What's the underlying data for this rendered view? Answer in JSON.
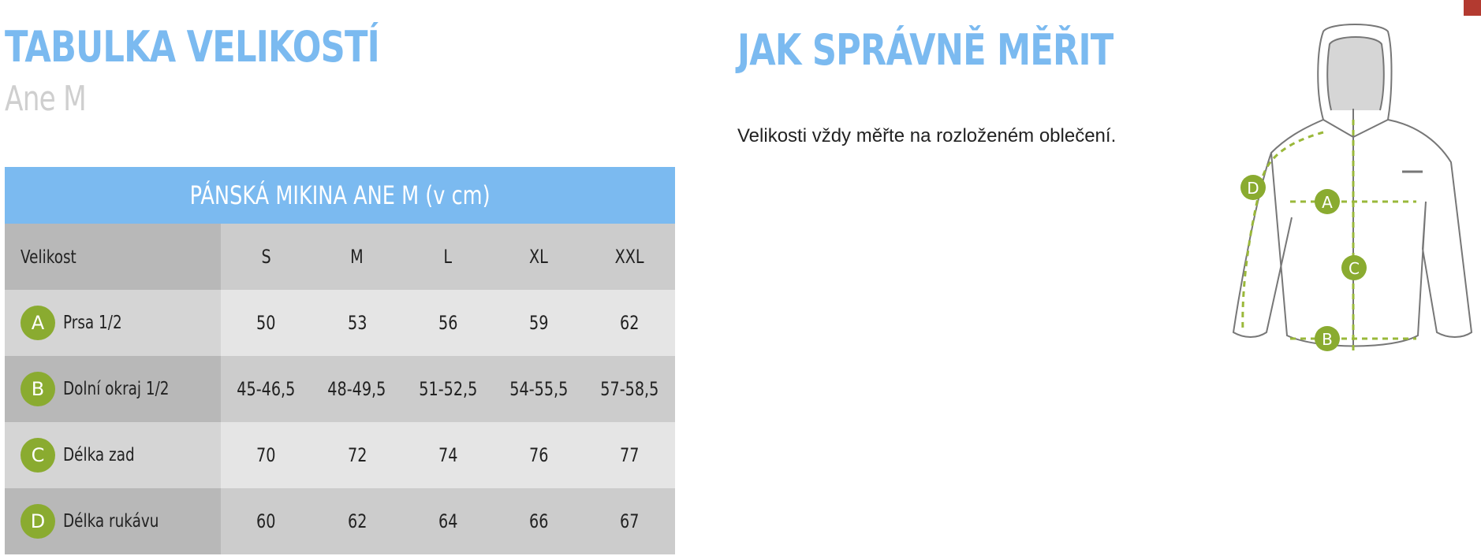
{
  "colors": {
    "accent_blue": "#7bbaf0",
    "badge_green": "#8aab30",
    "header_row_label": "#b8b8b8",
    "header_row": "#cccccc",
    "row_light_label": "#d5d5d5",
    "row_light": "#e5e5e5",
    "row_dark_label": "#b8b8b8",
    "row_dark": "#cccccc",
    "corner_mark": "#b33a30"
  },
  "left": {
    "title": "TABULKA VELIKOSTÍ",
    "product": "Ane M"
  },
  "table": {
    "caption": "PÁNSKÁ MIKINA ANE M (v cm)",
    "header": {
      "label": "Velikost",
      "sizes": [
        "S",
        "M",
        "L",
        "XL",
        "XXL"
      ]
    },
    "rows": [
      {
        "badge": "A",
        "label": "Prsa 1/2",
        "values": [
          "50",
          "53",
          "56",
          "59",
          "62"
        ]
      },
      {
        "badge": "B",
        "label": "Dolní okraj 1/2",
        "values": [
          "45-46,5",
          "48-49,5",
          "51-52,5",
          "54-55,5",
          "57-58,5"
        ]
      },
      {
        "badge": "C",
        "label": "Délka zad",
        "values": [
          "70",
          "72",
          "74",
          "76",
          "77"
        ]
      },
      {
        "badge": "D",
        "label": "Délka rukávu",
        "values": [
          "60",
          "62",
          "64",
          "66",
          "67"
        ]
      }
    ]
  },
  "right": {
    "title": "JAK SPRÁVNĚ MĚŘIT",
    "note": "Velikosti vždy měřte na rozloženém oblečení."
  },
  "diagram": {
    "markers": [
      "A",
      "B",
      "C",
      "D"
    ]
  }
}
